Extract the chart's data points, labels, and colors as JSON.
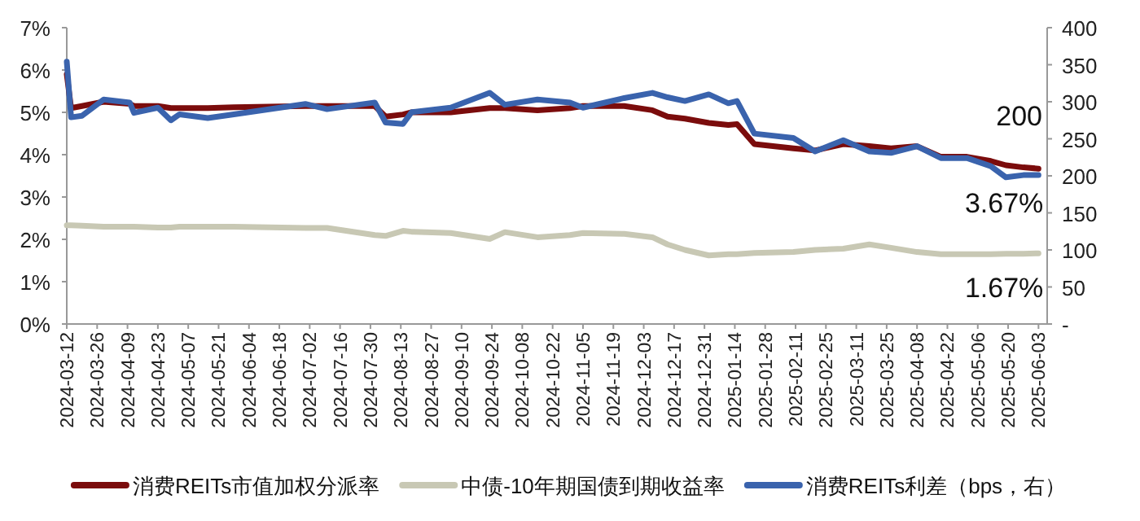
{
  "chart_data": {
    "type": "line",
    "x": [
      "2024-03-12",
      "2024-03-14",
      "2024-03-19",
      "2024-03-29",
      "2024-04-10",
      "2024-04-12",
      "2024-04-23",
      "2024-04-29",
      "2024-05-03",
      "2024-05-16",
      "2024-05-28",
      "2024-06-30",
      "2024-07-10",
      "2024-08-01",
      "2024-08-06",
      "2024-08-14",
      "2024-08-18",
      "2024-09-05",
      "2024-09-23",
      "2024-09-30",
      "2024-10-15",
      "2024-10-30",
      "2024-11-05",
      "2024-11-24",
      "2024-12-07",
      "2024-12-14",
      "2024-12-22",
      "2025-01-02",
      "2025-01-11",
      "2025-01-15",
      "2025-01-23",
      "2025-02-10",
      "2025-02-20",
      "2025-03-05",
      "2025-03-17",
      "2025-03-27",
      "2025-04-08",
      "2025-04-19",
      "2025-05-01",
      "2025-05-12",
      "2025-05-19",
      "2025-05-27",
      "2025-06-03"
    ],
    "series": [
      {
        "name": "消费REITs市值加权分派率",
        "color": "#7b0c0c",
        "values": [
          5.9,
          5.1,
          5.15,
          5.25,
          5.2,
          5.15,
          5.15,
          5.1,
          5.1,
          5.1,
          5.12,
          5.15,
          5.15,
          5.15,
          4.9,
          4.95,
          5.0,
          5.0,
          5.1,
          5.1,
          5.05,
          5.1,
          5.15,
          5.15,
          5.05,
          4.9,
          4.85,
          4.75,
          4.7,
          4.72,
          4.25,
          4.15,
          4.1,
          4.25,
          4.2,
          4.15,
          4.2,
          3.95,
          3.95,
          3.85,
          3.75,
          3.7,
          3.67
        ]
      },
      {
        "name": "中债-10年期国债到期收益率",
        "color": "#c8c8b4",
        "values": [
          2.33,
          2.33,
          2.32,
          2.3,
          2.3,
          2.3,
          2.28,
          2.28,
          2.3,
          2.3,
          2.3,
          2.27,
          2.27,
          2.1,
          2.08,
          2.2,
          2.18,
          2.15,
          2.01,
          2.17,
          2.05,
          2.1,
          2.15,
          2.13,
          2.05,
          1.88,
          1.75,
          1.62,
          1.65,
          1.65,
          1.68,
          1.7,
          1.75,
          1.78,
          1.88,
          1.8,
          1.7,
          1.65,
          1.65,
          1.65,
          1.66,
          1.66,
          1.67
        ]
      },
      {
        "name": "消费REITs利差（bps，右）",
        "color": "#3a63ad",
        "axis": "y2",
        "values": [
          354,
          279,
          281,
          303,
          299,
          285,
          292,
          275,
          283,
          278,
          283,
          297,
          290,
          299,
          272,
          270,
          286,
          292,
          312,
          296,
          303,
          299,
          292,
          305,
          312,
          306,
          301,
          310,
          298,
          301,
          257,
          251,
          233,
          248,
          233,
          231,
          240,
          224,
          224,
          213,
          198,
          201,
          201
        ]
      }
    ],
    "xlim": [
      "2024-03-12",
      "2025-06-07"
    ],
    "xticks": [
      "2024-03-12",
      "2024-03-26",
      "2024-04-09",
      "2024-04-23",
      "2024-05-07",
      "2024-05-21",
      "2024-06-04",
      "2024-06-18",
      "2024-07-02",
      "2024-07-16",
      "2024-07-30",
      "2024-08-13",
      "2024-08-27",
      "2024-09-10",
      "2024-09-24",
      "2024-10-08",
      "2024-10-22",
      "2024-11-05",
      "2024-11-19",
      "2024-12-03",
      "2024-12-17",
      "2024-12-31",
      "2025-01-14",
      "2025-01-28",
      "2025-02-11",
      "2025-02-25",
      "2025-03-11",
      "2025-03-25",
      "2025-04-08",
      "2025-04-22",
      "2025-05-06",
      "2025-05-20",
      "2025-06-03"
    ],
    "ylim": [
      0,
      7
    ],
    "yticks": [
      {
        "value": 0,
        "label": "0%"
      },
      {
        "value": 1,
        "label": "1%"
      },
      {
        "value": 2,
        "label": "2%"
      },
      {
        "value": 3,
        "label": "3%"
      },
      {
        "value": 4,
        "label": "4%"
      },
      {
        "value": 5,
        "label": "5%"
      },
      {
        "value": 6,
        "label": "6%"
      },
      {
        "value": 7,
        "label": "7%"
      }
    ],
    "y2lim": [
      0,
      400
    ],
    "y2ticks": [
      {
        "value": 0,
        "label": "-"
      },
      50,
      100,
      150,
      200,
      250,
      300,
      350,
      400
    ],
    "annotations": [
      "200",
      {
        "text": "3.67%",
        "x": "2025-06-03",
        "y": 3.67
      },
      {
        "text": "1.67%",
        "x": "2025-06-03",
        "y": 1.67
      }
    ],
    "legend": "bottom",
    "marker": "none",
    "line_style": "solid"
  }
}
